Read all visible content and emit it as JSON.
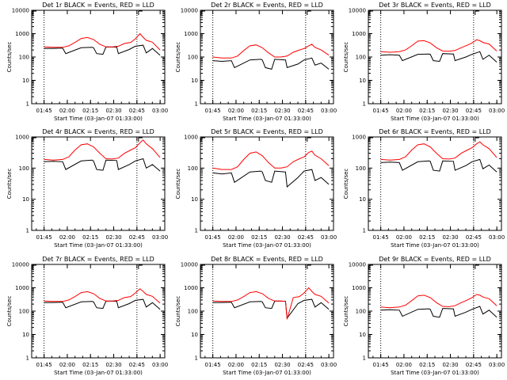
{
  "chart_data": [
    {
      "type": "line",
      "title": "Det 1r BLACK = Events, RED = LLD",
      "xlabel": "",
      "ylabel": "Counts/sec",
      "yscale": "log",
      "ylim": [
        1,
        10000
      ],
      "x_ticks": [
        "01:45",
        "02:00",
        "02:15",
        "02:30",
        "02:45",
        "03:00"
      ],
      "y_ticks": [
        "1",
        "10",
        "100",
        "1000",
        "10000"
      ],
      "series": [
        {
          "color": "#000000",
          "x": [
            0,
            6,
            12,
            14,
            24,
            31,
            32,
            34,
            38,
            40,
            47,
            48,
            55,
            59,
            64,
            66,
            70,
            75
          ],
          "y": [
            230,
            235,
            240,
            140,
            250,
            260,
            250,
            140,
            130,
            270,
            265,
            140,
            210,
            290,
            320,
            150,
            230,
            120
          ]
        },
        {
          "color": "#ff0000",
          "x": [
            0,
            6,
            12,
            16,
            20,
            24,
            28,
            32,
            36,
            40,
            44,
            48,
            52,
            56,
            59,
            62,
            64,
            66,
            70,
            75
          ],
          "y": [
            270,
            260,
            260,
            300,
            420,
            620,
            680,
            560,
            350,
            270,
            270,
            290,
            380,
            420,
            600,
            1000,
            700,
            520,
            430,
            200
          ]
        }
      ]
    },
    {
      "type": "line",
      "title": "Det 2r BLACK = Events, RED = LLD",
      "xlabel": "",
      "ylabel": "Counts/sec",
      "yscale": "log",
      "ylim": [
        1,
        10000
      ],
      "x_ticks": [
        "01:45",
        "02:00",
        "02:15",
        "02:30",
        "02:45",
        "03:00"
      ],
      "y_ticks": [
        "1",
        "10",
        "100",
        "1000",
        "10000"
      ],
      "series": [
        {
          "color": "#000000",
          "x": [
            0,
            6,
            12,
            14,
            24,
            31,
            32,
            34,
            38,
            40,
            47,
            48,
            55,
            59,
            64,
            66,
            70,
            75
          ],
          "y": [
            70,
            65,
            70,
            35,
            75,
            80,
            75,
            35,
            30,
            80,
            75,
            35,
            50,
            75,
            90,
            45,
            55,
            30
          ]
        },
        {
          "color": "#ff0000",
          "x": [
            0,
            6,
            12,
            16,
            20,
            24,
            28,
            32,
            36,
            40,
            44,
            48,
            52,
            56,
            59,
            62,
            64,
            66,
            70,
            75
          ],
          "y": [
            100,
            90,
            90,
            110,
            190,
            300,
            330,
            250,
            150,
            100,
            100,
            110,
            160,
            200,
            230,
            300,
            350,
            260,
            200,
            120
          ]
        }
      ]
    },
    {
      "type": "line",
      "title": "Det 3r BLACK = Events, RED = LLD",
      "xlabel": "",
      "ylabel": "Counts/sec",
      "yscale": "log",
      "ylim": [
        1,
        10000
      ],
      "x_ticks": [
        "01:45",
        "02:00",
        "02:15",
        "02:30",
        "02:45",
        "03:00"
      ],
      "y_ticks": [
        "1",
        "10",
        "100",
        "1000",
        "10000"
      ],
      "series": [
        {
          "color": "#000000",
          "x": [
            0,
            6,
            12,
            14,
            24,
            31,
            32,
            34,
            38,
            40,
            47,
            48,
            55,
            59,
            64,
            66,
            70,
            75
          ],
          "y": [
            120,
            125,
            120,
            70,
            130,
            135,
            130,
            70,
            65,
            140,
            135,
            70,
            100,
            130,
            170,
            80,
            120,
            60
          ]
        },
        {
          "color": "#ff0000",
          "x": [
            0,
            6,
            12,
            16,
            20,
            24,
            28,
            32,
            36,
            40,
            44,
            48,
            52,
            56,
            59,
            62,
            64,
            66,
            70,
            75
          ],
          "y": [
            170,
            160,
            170,
            200,
            300,
            480,
            500,
            400,
            250,
            180,
            175,
            190,
            250,
            320,
            400,
            550,
            500,
            420,
            360,
            180
          ]
        }
      ]
    },
    {
      "type": "line",
      "title": "Det 4r BLACK = Events, RED = LLD",
      "xlabel": "",
      "ylabel": "Counts/sec",
      "yscale": "log",
      "ylim": [
        1,
        1000
      ],
      "x_ticks": [
        "01:45",
        "02:00",
        "02:15",
        "02:30",
        "02:45",
        "03:00"
      ],
      "y_ticks": [
        "1",
        "10",
        "100",
        "1000"
      ],
      "series": [
        {
          "color": "#000000",
          "x": [
            0,
            6,
            12,
            14,
            24,
            31,
            32,
            34,
            38,
            40,
            47,
            48,
            55,
            59,
            64,
            66,
            70,
            75
          ],
          "y": [
            160,
            165,
            160,
            90,
            170,
            180,
            170,
            90,
            85,
            180,
            175,
            90,
            130,
            170,
            200,
            100,
            130,
            80
          ]
        },
        {
          "color": "#ff0000",
          "x": [
            0,
            6,
            12,
            16,
            20,
            24,
            28,
            32,
            36,
            40,
            44,
            48,
            52,
            56,
            59,
            62,
            64,
            66,
            70,
            75
          ],
          "y": [
            190,
            180,
            190,
            230,
            380,
            560,
            600,
            480,
            300,
            200,
            195,
            210,
            300,
            380,
            450,
            650,
            800,
            600,
            420,
            220
          ]
        }
      ]
    },
    {
      "type": "line",
      "title": "Det 5r BLACK = Events, RED = LLD",
      "xlabel": "",
      "ylabel": "Counts/sec",
      "yscale": "log",
      "ylim": [
        1,
        1000
      ],
      "x_ticks": [
        "01:45",
        "02:00",
        "02:15",
        "02:30",
        "02:45",
        "03:00"
      ],
      "y_ticks": [
        "1",
        "10",
        "100",
        "1000"
      ],
      "series": [
        {
          "color": "#000000",
          "x": [
            0,
            6,
            12,
            14,
            24,
            31,
            32,
            34,
            38,
            40,
            47,
            48,
            55,
            59,
            64,
            66,
            70,
            75
          ],
          "y": [
            70,
            65,
            70,
            35,
            75,
            80,
            75,
            40,
            35,
            80,
            75,
            25,
            50,
            80,
            90,
            40,
            50,
            30
          ]
        },
        {
          "color": "#ff0000",
          "x": [
            0,
            6,
            12,
            16,
            20,
            24,
            28,
            32,
            36,
            40,
            44,
            48,
            52,
            56,
            59,
            62,
            64,
            66,
            70,
            75
          ],
          "y": [
            100,
            90,
            90,
            110,
            190,
            300,
            330,
            250,
            150,
            100,
            100,
            110,
            160,
            200,
            230,
            320,
            350,
            260,
            200,
            120
          ]
        }
      ]
    },
    {
      "type": "line",
      "title": "Det 6r BLACK = Events, RED = LLD",
      "xlabel": "",
      "ylabel": "Counts/sec",
      "yscale": "log",
      "ylim": [
        1,
        1000
      ],
      "x_ticks": [
        "01:45",
        "02:00",
        "02:15",
        "02:30",
        "02:45",
        "03:00"
      ],
      "y_ticks": [
        "1",
        "10",
        "100",
        "1000"
      ],
      "series": [
        {
          "color": "#000000",
          "x": [
            0,
            6,
            12,
            14,
            24,
            31,
            32,
            34,
            38,
            40,
            47,
            48,
            55,
            59,
            64,
            66,
            70,
            75
          ],
          "y": [
            150,
            155,
            150,
            85,
            160,
            170,
            165,
            85,
            80,
            170,
            165,
            85,
            120,
            160,
            190,
            95,
            125,
            75
          ]
        },
        {
          "color": "#ff0000",
          "x": [
            0,
            6,
            12,
            16,
            20,
            24,
            28,
            32,
            36,
            40,
            44,
            48,
            52,
            56,
            59,
            62,
            64,
            66,
            70,
            75
          ],
          "y": [
            190,
            180,
            190,
            230,
            380,
            560,
            600,
            480,
            300,
            200,
            195,
            210,
            300,
            380,
            450,
            600,
            700,
            560,
            420,
            220
          ]
        }
      ]
    },
    {
      "type": "line",
      "title": "Det 7r BLACK = Events, RED = LLD",
      "xlabel": "",
      "ylabel": "Counts/sec",
      "yscale": "log",
      "ylim": [
        1,
        10000
      ],
      "x_ticks": [
        "01:45",
        "02:00",
        "02:15",
        "02:30",
        "02:45",
        "03:00"
      ],
      "y_ticks": [
        "1",
        "10",
        "100",
        "1000",
        "10000"
      ],
      "series": [
        {
          "color": "#000000",
          "x": [
            0,
            6,
            12,
            14,
            24,
            31,
            32,
            34,
            38,
            40,
            47,
            48,
            55,
            59,
            64,
            66,
            70,
            75
          ],
          "y": [
            230,
            235,
            240,
            140,
            250,
            260,
            250,
            140,
            130,
            270,
            265,
            140,
            210,
            290,
            320,
            150,
            230,
            120
          ]
        },
        {
          "color": "#ff0000",
          "x": [
            0,
            6,
            12,
            16,
            20,
            24,
            28,
            32,
            36,
            40,
            44,
            48,
            52,
            56,
            59,
            62,
            64,
            66,
            70,
            75
          ],
          "y": [
            270,
            260,
            260,
            300,
            420,
            620,
            680,
            560,
            350,
            270,
            270,
            290,
            380,
            420,
            600,
            900,
            700,
            520,
            430,
            220
          ]
        }
      ]
    },
    {
      "type": "line",
      "title": "Det 8r BLACK = Events, RED = LLD",
      "xlabel": "",
      "ylabel": "Counts/sec",
      "yscale": "log",
      "ylim": [
        1,
        10000
      ],
      "x_ticks": [
        "01:45",
        "02:00",
        "02:15",
        "02:30",
        "02:45",
        "03:00"
      ],
      "y_ticks": [
        "1",
        "10",
        "100",
        "1000",
        "10000"
      ],
      "series": [
        {
          "color": "#000000",
          "x": [
            0,
            6,
            12,
            14,
            24,
            31,
            32,
            34,
            38,
            40,
            47,
            48,
            55,
            59,
            64,
            66,
            70,
            75
          ],
          "y": [
            230,
            235,
            240,
            140,
            250,
            260,
            250,
            140,
            130,
            270,
            265,
            50,
            210,
            290,
            320,
            150,
            230,
            120
          ]
        },
        {
          "color": "#ff0000",
          "x": [
            0,
            6,
            12,
            16,
            20,
            24,
            28,
            32,
            36,
            40,
            44,
            47,
            48,
            52,
            56,
            59,
            62,
            64,
            66,
            70,
            75
          ],
          "y": [
            270,
            260,
            260,
            300,
            420,
            620,
            680,
            560,
            350,
            270,
            270,
            260,
            45,
            380,
            420,
            600,
            1000,
            700,
            520,
            430,
            220
          ]
        }
      ]
    },
    {
      "type": "line",
      "title": "Det 9r BLACK = Events, RED = LLD",
      "xlabel": "",
      "ylabel": "Counts/sec",
      "yscale": "log",
      "ylim": [
        1,
        10000
      ],
      "x_ticks": [
        "01:45",
        "02:00",
        "02:15",
        "02:30",
        "02:45",
        "03:00"
      ],
      "y_ticks": [
        "1",
        "10",
        "100",
        "1000",
        "10000"
      ],
      "series": [
        {
          "color": "#000000",
          "x": [
            0,
            6,
            12,
            14,
            24,
            31,
            32,
            34,
            38,
            40,
            47,
            48,
            55,
            59,
            64,
            66,
            70,
            75
          ],
          "y": [
            110,
            115,
            110,
            60,
            120,
            125,
            120,
            60,
            55,
            130,
            125,
            60,
            90,
            120,
            160,
            75,
            110,
            55
          ]
        },
        {
          "color": "#ff0000",
          "x": [
            0,
            6,
            12,
            16,
            20,
            24,
            28,
            32,
            36,
            40,
            44,
            48,
            52,
            56,
            59,
            62,
            64,
            66,
            70,
            75
          ],
          "y": [
            150,
            140,
            150,
            180,
            280,
            450,
            480,
            380,
            230,
            160,
            155,
            170,
            230,
            300,
            380,
            520,
            480,
            400,
            340,
            170
          ]
        }
      ]
    }
  ],
  "footer": {
    "start_time": "Start Time (03-Jan-07 01:33:00)"
  }
}
